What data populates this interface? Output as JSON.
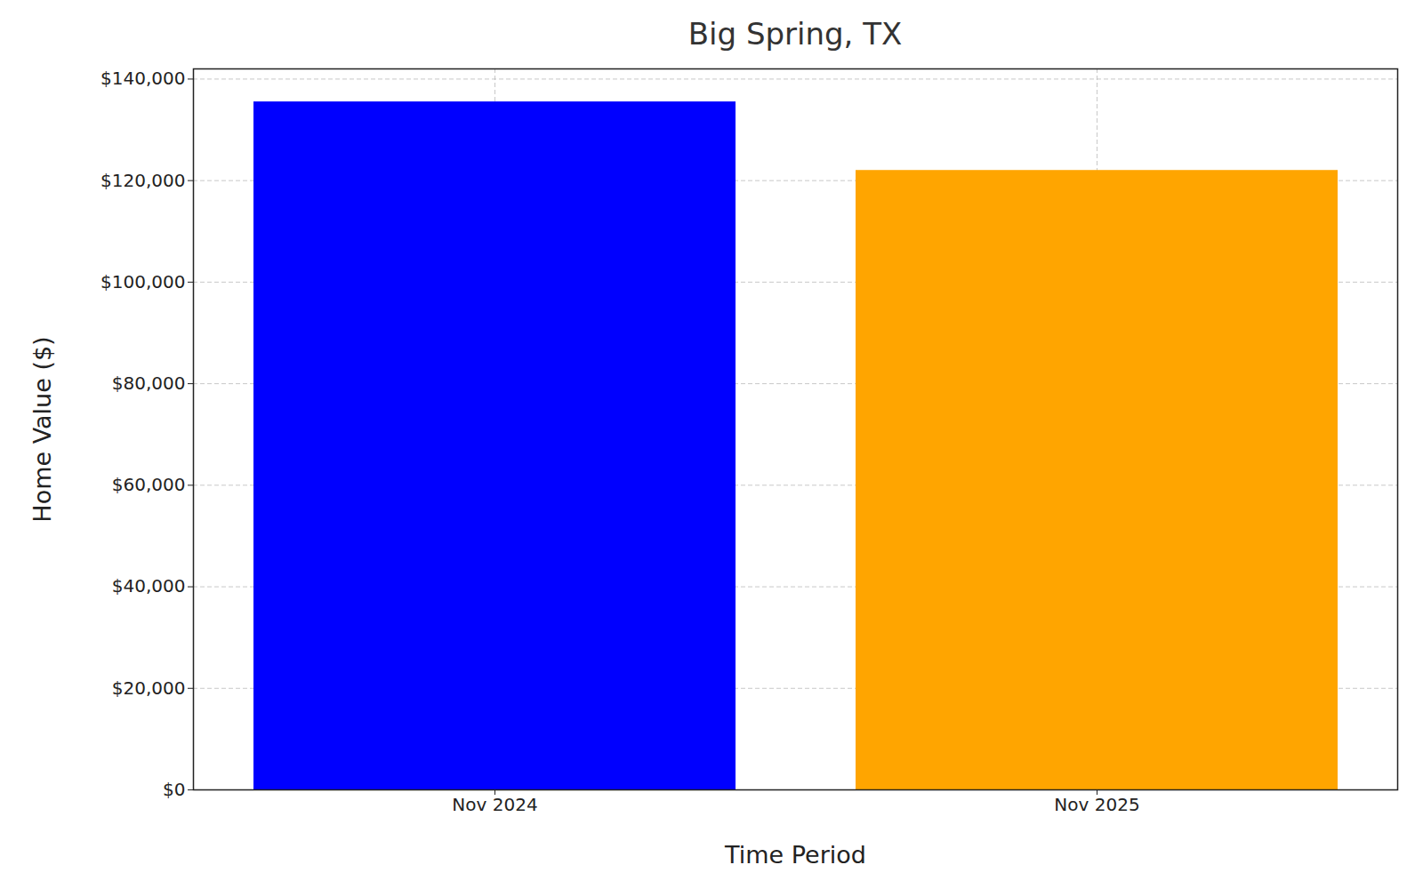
{
  "chart_data": {
    "type": "bar",
    "title": "Big Spring, TX",
    "x_label": "Time Period",
    "y_label": "Home Value ($)",
    "categories": [
      "Nov 2024",
      "Nov 2025"
    ],
    "values": [
      135500,
      122000
    ],
    "colors": [
      "#0000ff",
      "#ffa500"
    ],
    "ylim": [
      0,
      142000
    ],
    "yticks": [
      {
        "value": 0,
        "label": "$0"
      },
      {
        "value": 20000,
        "label": "$20,000"
      },
      {
        "value": 40000,
        "label": "$40,000"
      },
      {
        "value": 60000,
        "label": "$60,000"
      },
      {
        "value": 80000,
        "label": "$80,000"
      },
      {
        "value": 100000,
        "label": "$100,000"
      },
      {
        "value": 120000,
        "label": "$120,000"
      },
      {
        "value": 140000,
        "label": "$140,000"
      }
    ],
    "grid": true
  }
}
